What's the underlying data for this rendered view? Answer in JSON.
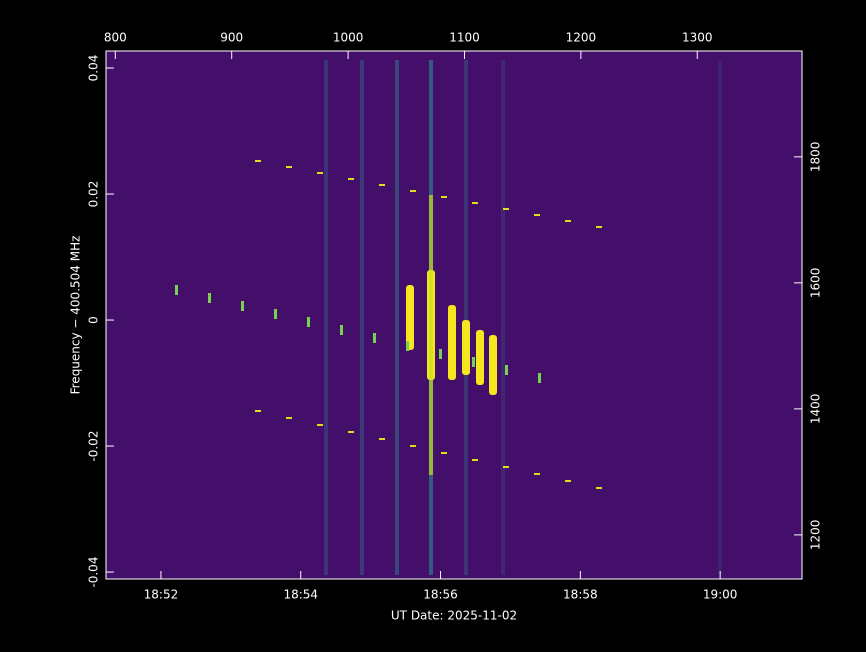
{
  "chart_data": {
    "type": "spectrogram",
    "xlabel": "UT Date: 2025-11-02",
    "ylabel": "Frequency − 400.504 MHz",
    "xlim": [
      1131.214,
      1141.171
    ],
    "xticks": [
      {
        "value": 1132,
        "label": "18:52"
      },
      {
        "value": 1134,
        "label": "18:54"
      },
      {
        "value": 1136,
        "label": "18:56"
      },
      {
        "value": 1138,
        "label": "18:58"
      },
      {
        "value": 1140,
        "label": "19:00"
      }
    ],
    "x2lim": [
      792,
      1390
    ],
    "x2ticks": [
      800,
      900,
      1000,
      1100,
      1200,
      1300
    ],
    "ylim": [
      -0.0411,
      0.0427
    ],
    "yticks": [
      -0.04,
      -0.02,
      0,
      0.02,
      0.04
    ],
    "y2lim": [
      1130,
      1968
    ],
    "y2ticks": [
      1200,
      1400,
      1600,
      1800
    ],
    "color": "#440f6a"
  }
}
